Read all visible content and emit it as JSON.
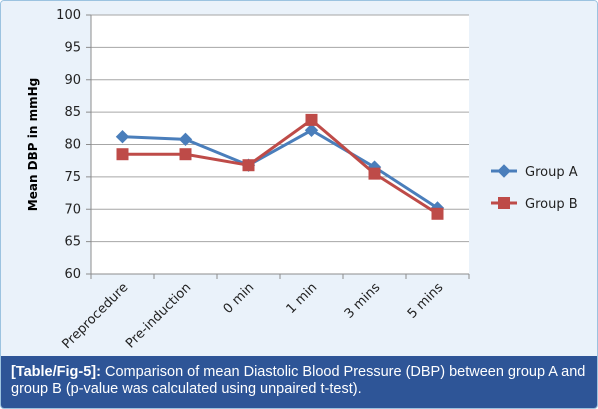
{
  "chart_data": {
    "type": "line",
    "categories": [
      "Preprocedure",
      "Pre-induction",
      "0 min",
      "1 min",
      "3 mins",
      "5 mins"
    ],
    "series": [
      {
        "name": "Group A",
        "values": [
          81.2,
          80.8,
          76.8,
          82.2,
          76.5,
          70.2
        ],
        "color": "#4a7ebb",
        "marker": "diamond"
      },
      {
        "name": "Group B",
        "values": [
          78.5,
          78.5,
          76.8,
          83.8,
          75.5,
          69.3
        ],
        "color": "#be4b48",
        "marker": "square"
      }
    ],
    "ylabel": "Mean DBP in mmHg",
    "ylim": [
      60,
      100
    ],
    "yticks": [
      60,
      65,
      70,
      75,
      80,
      85,
      90,
      95,
      100
    ],
    "grid": true,
    "legend_position": "right"
  },
  "caption": {
    "lead": "[Table/Fig-5]:",
    "text": " Comparison of mean Diastolic Blood Pressure (DBP) between group A and group B (p-value was calculated using unpaired t-test)."
  }
}
